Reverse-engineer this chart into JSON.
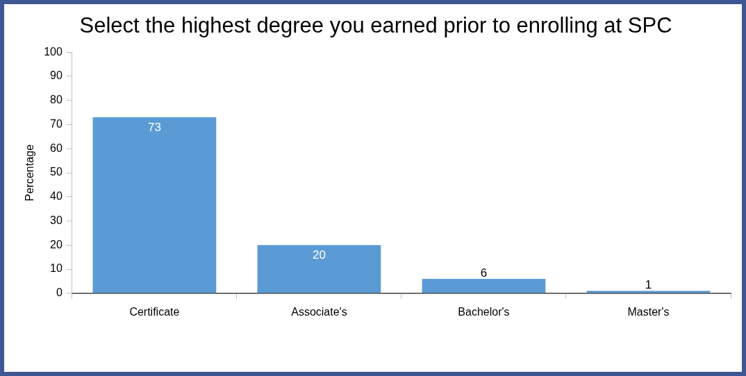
{
  "chart_data": {
    "type": "bar",
    "title": "Select the highest degree you earned prior to enrolling at SPC",
    "ylabel": "Percentage",
    "categories": [
      "Certificate",
      "Associate's",
      "Bachelor's",
      "Master's"
    ],
    "values": [
      73,
      20,
      6,
      1
    ],
    "color": "#5b9bd5",
    "ylim": [
      0,
      100
    ],
    "yticks": [
      0,
      10,
      20,
      30,
      40,
      50,
      60,
      70,
      80,
      90,
      100
    ],
    "grid": false,
    "legend": false,
    "data_labels": true
  }
}
